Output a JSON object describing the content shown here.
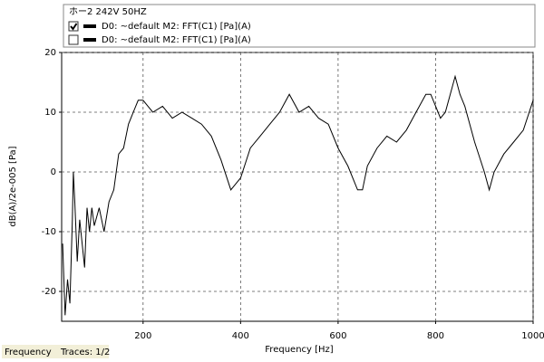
{
  "chart_data": {
    "type": "line",
    "legend_title": "ホー2 242V 50HZ",
    "x_label": "Frequency [Hz]",
    "y_label": "dB(A)/2e-005 [Pa]",
    "x": [
      35,
      40,
      45,
      50,
      55,
      57,
      60,
      65,
      70,
      75,
      80,
      85,
      90,
      95,
      100,
      110,
      120,
      130,
      140,
      150,
      160,
      170,
      180,
      190,
      200,
      210,
      220,
      240,
      260,
      280,
      300,
      320,
      340,
      360,
      380,
      390,
      400,
      420,
      440,
      460,
      480,
      500,
      520,
      540,
      560,
      580,
      600,
      620,
      640,
      650,
      660,
      680,
      700,
      720,
      740,
      760,
      780,
      790,
      800,
      810,
      820,
      830,
      840,
      850,
      860,
      880,
      900,
      910,
      920,
      940,
      960,
      980,
      1000
    ],
    "series": [
      {
        "name": "D0: ~default  M2: FFT(C1) [Pa](A)",
        "color": "#000000",
        "visible": true,
        "values": [
          -12,
          -24,
          -18,
          -22,
          -8,
          0,
          -5,
          -15,
          -8,
          -12,
          -16,
          -6,
          -10,
          -6,
          -9,
          -6,
          -10,
          -5,
          -3,
          3,
          4,
          8,
          10,
          12,
          12,
          11,
          10,
          11,
          9,
          10,
          9,
          8,
          6,
          2,
          -3,
          -2,
          -1,
          4,
          6,
          8,
          10,
          13,
          10,
          11,
          9,
          8,
          4,
          1,
          -3,
          -3,
          1,
          4,
          6,
          5,
          7,
          10,
          13,
          13,
          11,
          9,
          10,
          13,
          16,
          13,
          11,
          5,
          0,
          -3,
          0,
          3,
          5,
          7,
          12
        ]
      },
      {
        "name": "D0: ~default  M2: FFT(C1) [Pa](A)",
        "color": "#000000",
        "visible": false
      }
    ],
    "xlim": [
      33,
      1000
    ],
    "ylim": [
      -25,
      20
    ],
    "xticks": [
      200,
      400,
      600,
      800,
      1000
    ],
    "yticks": [
      -20,
      -10,
      0,
      10,
      20
    ],
    "grid": true
  },
  "status_bar": {
    "mode": "Frequency",
    "traces": "Traces: 1/2"
  }
}
